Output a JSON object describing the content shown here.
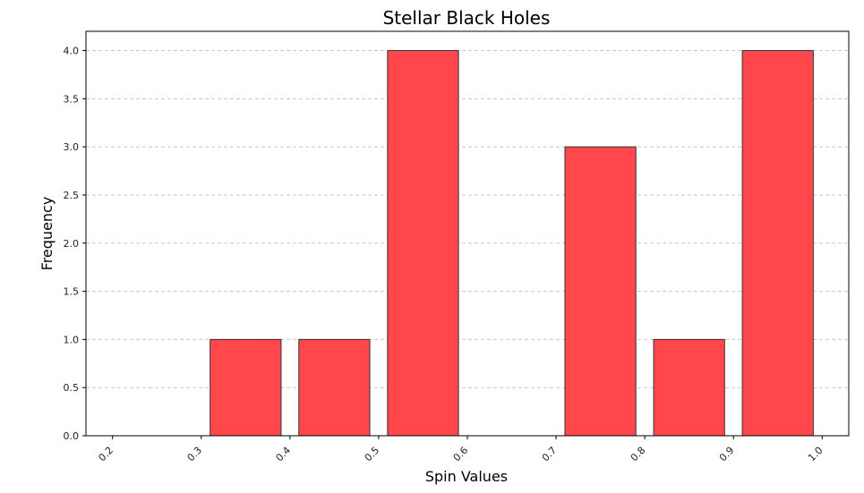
{
  "chart_data": {
    "type": "bar",
    "title": "Stellar Black Holes",
    "xlabel": "Spin Values",
    "ylabel": "Frequency",
    "bins": [
      {
        "start": 0.2,
        "end": 0.3,
        "value": 0
      },
      {
        "start": 0.3,
        "end": 0.4,
        "value": 1
      },
      {
        "start": 0.4,
        "end": 0.5,
        "value": 1
      },
      {
        "start": 0.5,
        "end": 0.6,
        "value": 4
      },
      {
        "start": 0.6,
        "end": 0.7,
        "value": 0
      },
      {
        "start": 0.7,
        "end": 0.8,
        "value": 3
      },
      {
        "start": 0.8,
        "end": 0.9,
        "value": 1
      },
      {
        "start": 0.9,
        "end": 1.0,
        "value": 4
      }
    ],
    "xticks": [
      "0.2",
      "0.3",
      "0.4",
      "0.5",
      "0.6",
      "0.7",
      "0.8",
      "0.9",
      "1.0"
    ],
    "yticks": [
      "0.0",
      "0.5",
      "1.0",
      "1.5",
      "2.0",
      "2.5",
      "3.0",
      "3.5",
      "4.0"
    ],
    "xlim": [
      0.17,
      1.03
    ],
    "ylim": [
      0,
      4.2
    ],
    "grid": "y-dashed",
    "bar_color": "#ff474c",
    "bar_edge_color": "#333333"
  }
}
